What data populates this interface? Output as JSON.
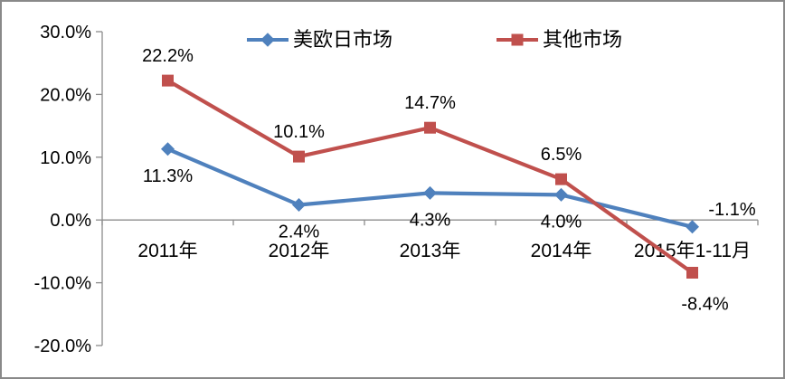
{
  "chart_data": {
    "type": "line",
    "title": "",
    "categories": [
      "2011年",
      "2012年",
      "2013年",
      "2014年",
      "2015年1-11月"
    ],
    "series": [
      {
        "name": "美欧日市场",
        "color": "#4F81BD",
        "marker": "diamond",
        "values": [
          11.3,
          2.4,
          4.3,
          4.0,
          -1.1
        ],
        "labels": [
          "11.3%",
          "2.4%",
          "4.3%",
          "4.0%",
          "-1.1%"
        ],
        "label_positions": [
          "below",
          "below",
          "below",
          "below",
          "above-right"
        ]
      },
      {
        "name": "其他市场",
        "color": "#C0504D",
        "marker": "square",
        "values": [
          22.2,
          10.1,
          14.7,
          6.5,
          -8.4
        ],
        "labels": [
          "22.2%",
          "10.1%",
          "14.7%",
          "6.5%",
          "-8.4%"
        ],
        "label_positions": [
          "above",
          "above",
          "above",
          "above",
          "below-far"
        ]
      }
    ],
    "xlabel": "",
    "ylabel": "",
    "ylim": [
      -20,
      30
    ],
    "yticks": {
      "values": [
        30,
        20,
        10,
        0,
        -10,
        -20
      ],
      "labels": [
        "30.0%",
        "20.0%",
        "10.0%",
        "0.0%",
        "-10.0%",
        "-20.0%"
      ]
    },
    "grid": false,
    "legend_position": "top",
    "colors": {
      "axis": "#8C8C8C",
      "text": "#000000",
      "background": "#FFFFFF",
      "frame_border": "#898989"
    }
  }
}
